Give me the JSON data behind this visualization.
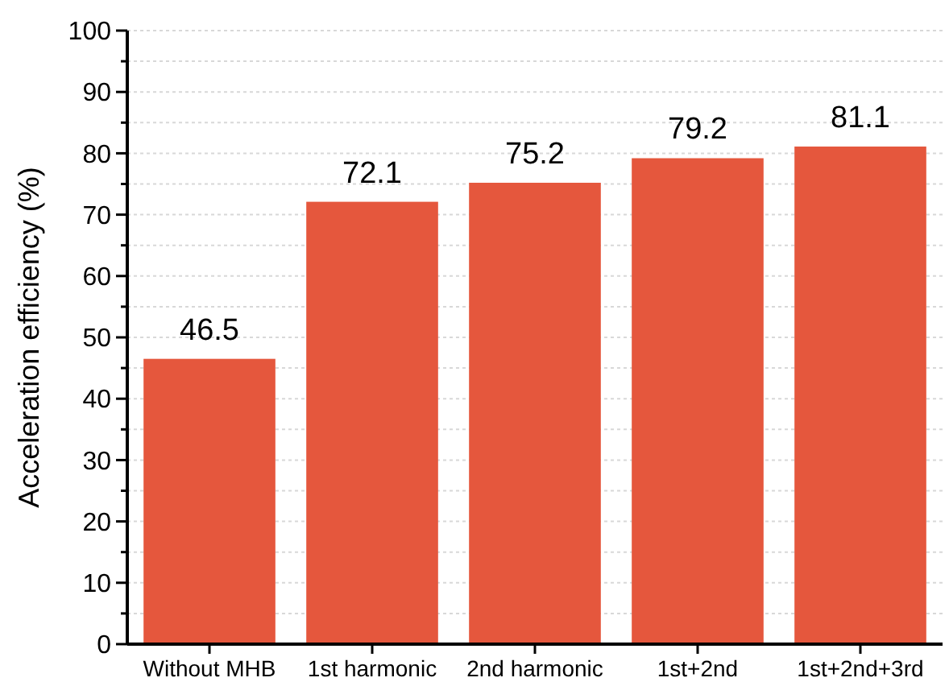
{
  "chart_data": {
    "type": "bar",
    "ylabel": "Acceleration efficiency (%)",
    "categories": [
      "Without MHB",
      "1st harmonic",
      "2nd harmonic",
      "1st+2nd",
      "1st+2nd+3rd"
    ],
    "values": [
      46.5,
      72.1,
      75.2,
      79.2,
      81.1
    ],
    "color": "#e5573d",
    "data_labels": true,
    "ylim": [
      0,
      100
    ],
    "yticks": [
      0,
      {
        "value": 5,
        "label": null
      },
      10,
      {
        "value": 15,
        "label": null
      },
      20,
      {
        "value": 25,
        "label": null
      },
      30,
      {
        "value": 35,
        "label": null
      },
      40,
      {
        "value": 45,
        "label": null
      },
      50,
      {
        "value": 55,
        "label": null
      },
      60,
      {
        "value": 65,
        "label": null
      },
      70,
      {
        "value": 75,
        "label": null
      },
      80,
      {
        "value": 85,
        "label": null
      },
      90,
      {
        "value": 95,
        "label": null
      },
      100
    ],
    "grid": true
  }
}
